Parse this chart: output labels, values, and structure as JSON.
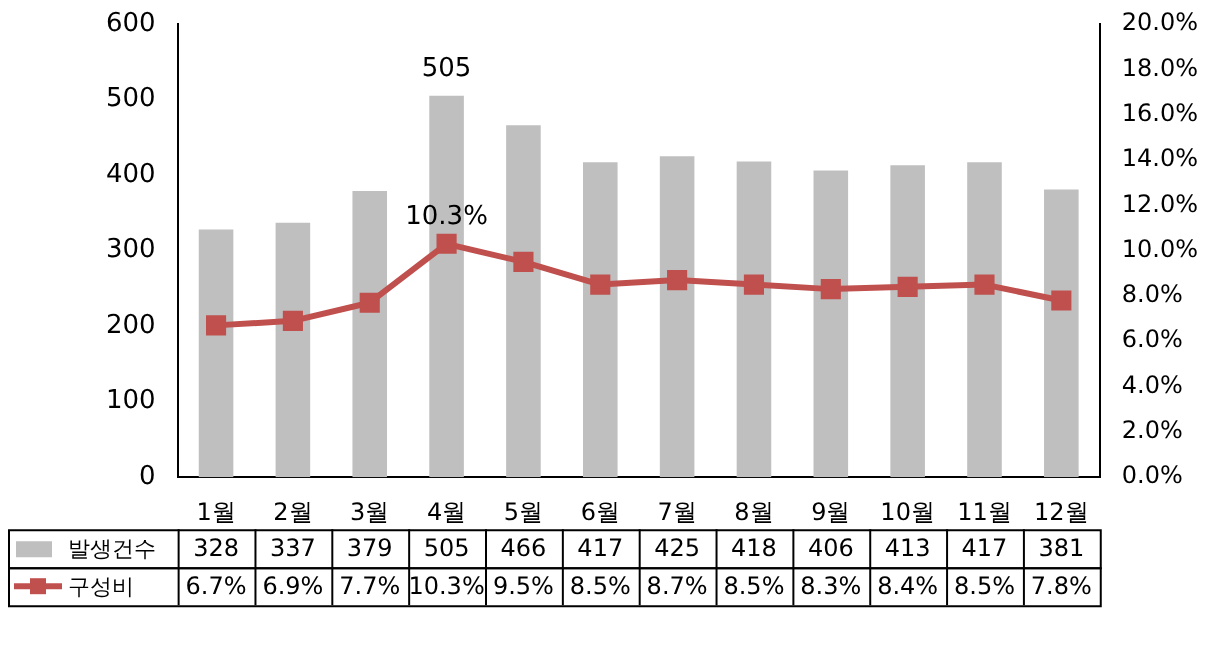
{
  "chart_data": {
    "type": "bar",
    "categories": [
      "1월",
      "2월",
      "3월",
      "4월",
      "5월",
      "6월",
      "7월",
      "8월",
      "9월",
      "10월",
      "11월",
      "12월"
    ],
    "series": [
      {
        "name": "발생건수",
        "color": "#bfbfbf",
        "values": [
          328,
          337,
          379,
          505,
          466,
          417,
          425,
          418,
          406,
          413,
          417,
          381
        ],
        "value_labels": [
          "328",
          "337",
          "379",
          "505",
          "466",
          "417",
          "425",
          "418",
          "406",
          "413",
          "417",
          "381"
        ]
      },
      {
        "name": "구성비",
        "type": "line",
        "axis": "y2",
        "color": "#c0504d",
        "values": [
          6.7,
          6.9,
          7.7,
          10.3,
          9.5,
          8.5,
          8.7,
          8.5,
          8.3,
          8.4,
          8.5,
          7.8
        ],
        "value_labels": [
          "6.7%",
          "6.9%",
          "7.7%",
          "10.3%",
          "9.5%",
          "8.5%",
          "8.7%",
          "8.5%",
          "8.3%",
          "8.4%",
          "8.5%",
          "7.8%"
        ]
      }
    ],
    "ylim": [
      0,
      600
    ],
    "yticks": [
      0,
      100,
      200,
      300,
      400,
      500,
      600
    ],
    "y2lim": [
      0,
      20
    ],
    "y2ticks": [
      {
        "value": 0,
        "label": "0.0%"
      },
      {
        "value": 2,
        "label": "2.0%"
      },
      {
        "value": 4,
        "label": "4.0%"
      },
      {
        "value": 6,
        "label": "6.0%"
      },
      {
        "value": 8,
        "label": "8.0%"
      },
      {
        "value": 10,
        "label": "10.0%"
      },
      {
        "value": 12,
        "label": "12.0%"
      },
      {
        "value": 14,
        "label": "14.0%"
      },
      {
        "value": 16,
        "label": "16.0%"
      },
      {
        "value": 18,
        "label": "18.0%"
      },
      {
        "value": 20,
        "label": "20.0%"
      }
    ],
    "marker": "square",
    "grid": false,
    "legend": "bottom",
    "annotations": [
      {
        "text": "505",
        "x": "4월",
        "y": 505
      },
      "10.3%"
    ]
  }
}
